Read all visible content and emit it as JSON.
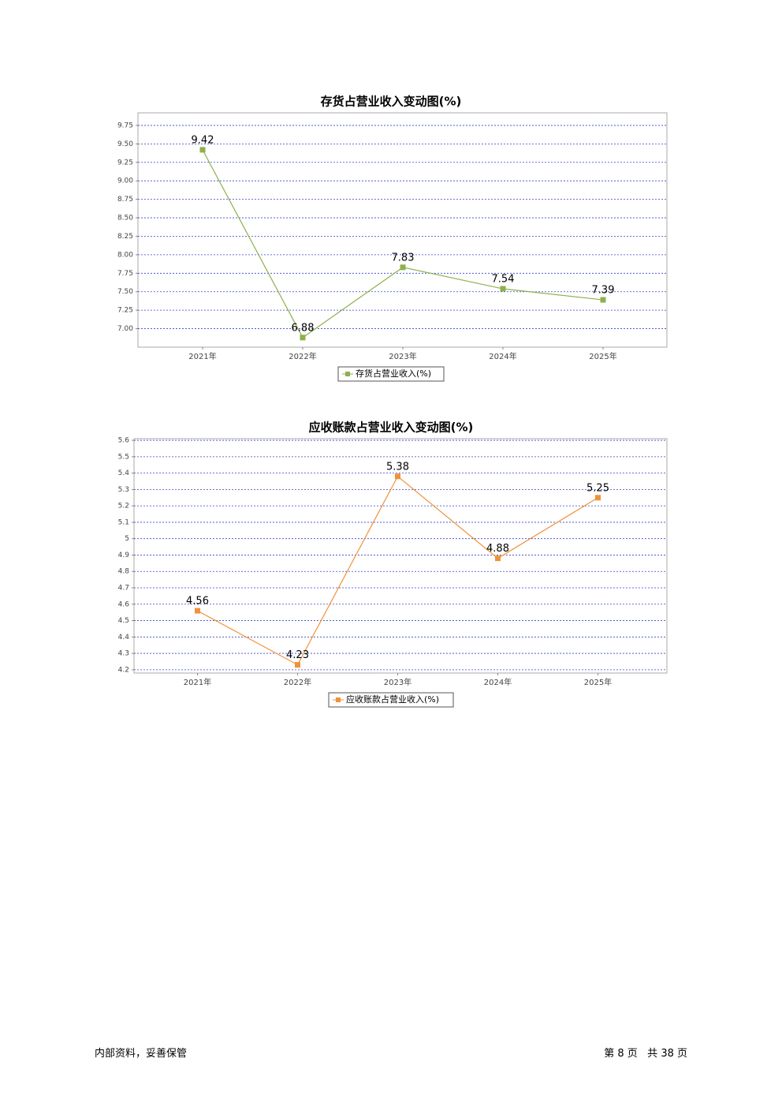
{
  "chart_data": [
    {
      "type": "line",
      "title": "存货占营业收入变动图(%)",
      "categories": [
        "2021年",
        "2022年",
        "2023年",
        "2024年",
        "2025年"
      ],
      "series": [
        {
          "name": "存货占营业收入(%)",
          "color": "#8db04b",
          "values": [
            9.42,
            6.88,
            7.83,
            7.54,
            7.39
          ]
        }
      ],
      "ylim": [
        6.75,
        9.92
      ],
      "yticks": [
        {
          "value": 7.0,
          "label": "7.00"
        },
        7.25,
        {
          "value": 7.5,
          "label": "7.50"
        },
        7.75,
        {
          "value": 8.0,
          "label": "8.00"
        },
        8.25,
        {
          "value": 8.5,
          "label": "8.50"
        },
        8.75,
        {
          "value": 9.0,
          "label": "9.00"
        },
        9.25,
        {
          "value": 9.5,
          "label": "9.50"
        },
        9.75
      ],
      "grid": true
    },
    {
      "type": "line",
      "title": "应收账款占营业收入变动图(%)",
      "categories": [
        "2021年",
        "2022年",
        "2023年",
        "2024年",
        "2025年"
      ],
      "series": [
        {
          "name": "应收账款占营业收入(%)",
          "color": "#f0923a",
          "values": [
            4.56,
            4.23,
            5.38,
            4.88,
            5.25
          ]
        }
      ],
      "ylim": [
        4.18,
        5.61
      ],
      "yticks": [
        4.2,
        4.3,
        4.4,
        4.5,
        4.6,
        4.7,
        4.8,
        4.9,
        5.0,
        5.1,
        5.2,
        5.3,
        5.4,
        5.5,
        5.6
      ],
      "grid": true
    }
  ],
  "footer": {
    "left": "内部资料，妥善保管",
    "right": "第 8 页   共 38 页"
  }
}
